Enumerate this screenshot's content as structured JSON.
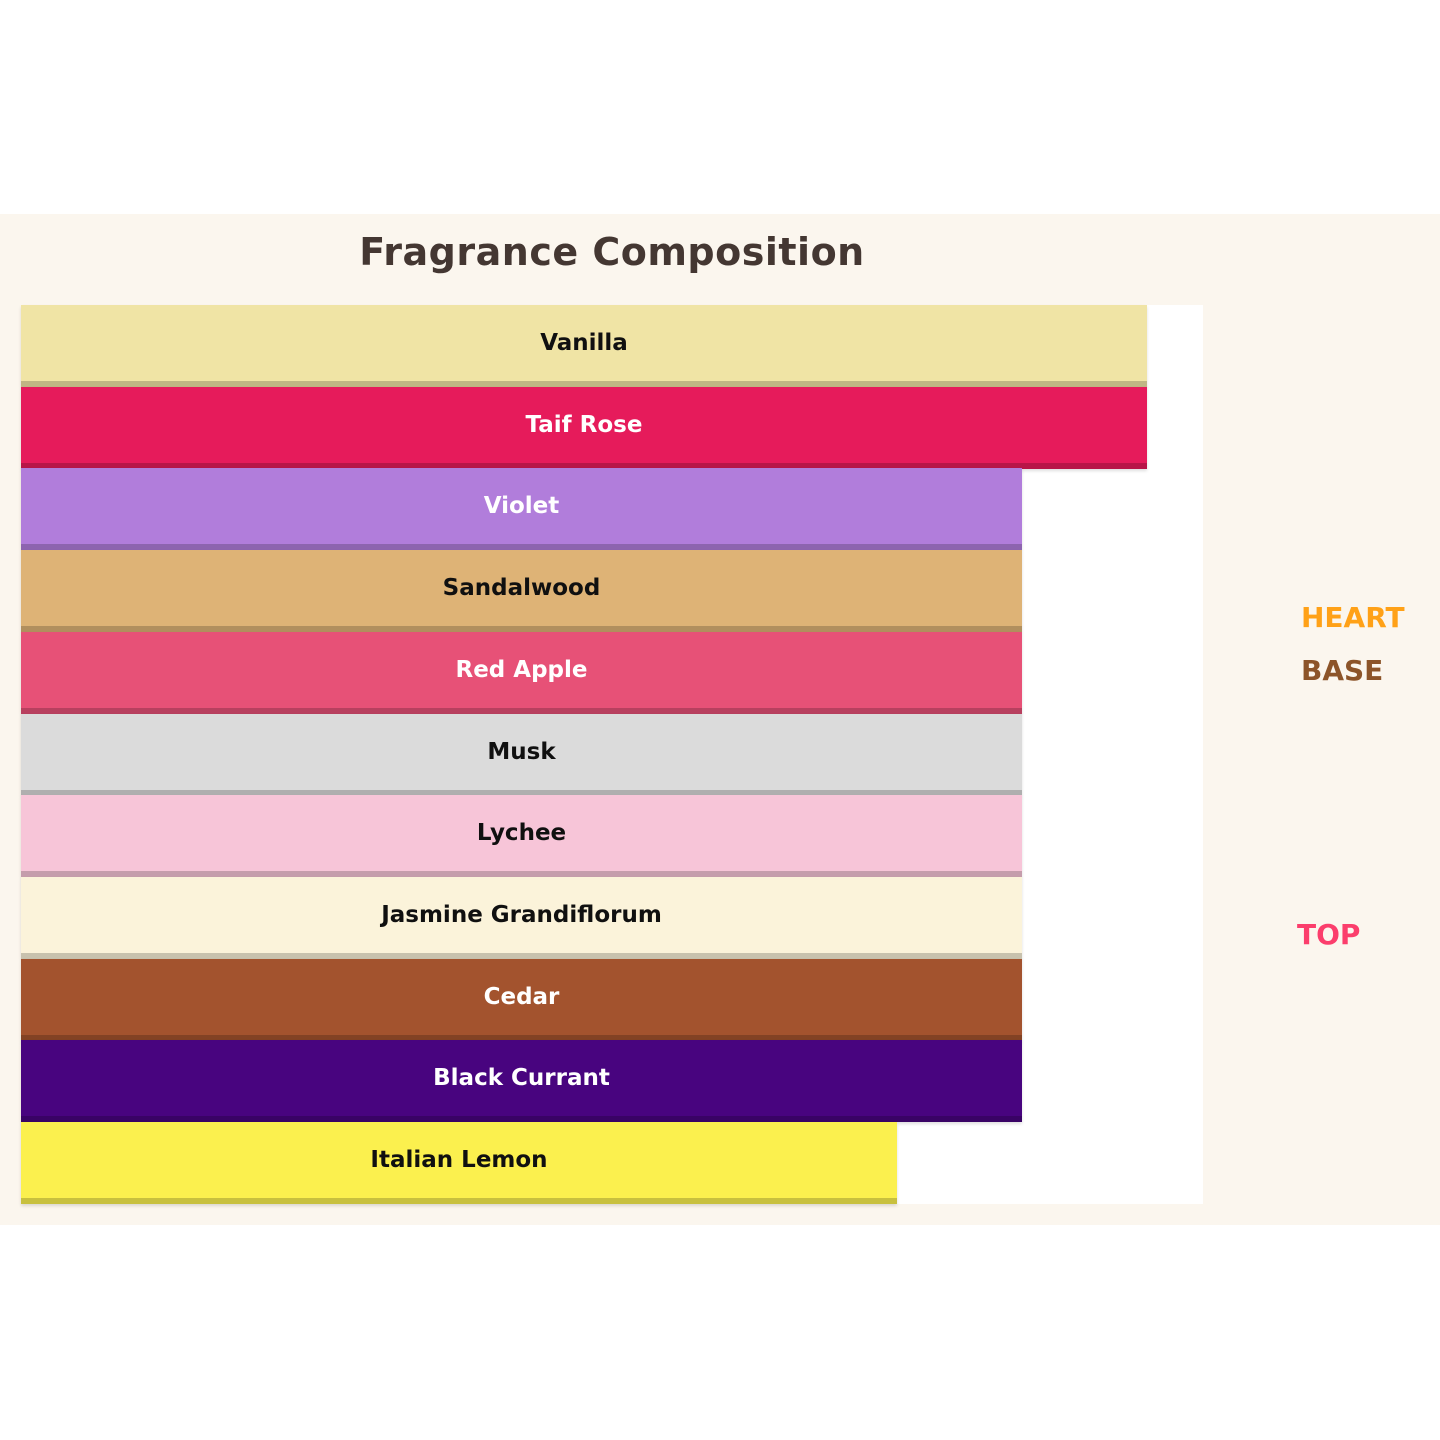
{
  "title": "Fragrance Composition",
  "colors": {
    "page_background": "#FFFFFF",
    "band_background": "#FBF6EE",
    "panel_background": "#FFFFFF",
    "title_text": "#443732"
  },
  "chart_data": {
    "type": "bar",
    "orientation": "horizontal",
    "title": "Fragrance Composition",
    "grid": false,
    "axes_visible": false,
    "bars": [
      {
        "label": "Vanilla",
        "length_frac": 0.953,
        "color": "#F0E4A5",
        "text_color": "#101010"
      },
      {
        "label": "Taif Rose",
        "length_frac": 0.953,
        "color": "#E61B5B",
        "text_color": "#FFFFFF"
      },
      {
        "label": "Violet",
        "length_frac": 0.847,
        "color": "#B17DDB",
        "text_color": "#FFFFFF"
      },
      {
        "label": "Sandalwood",
        "length_frac": 0.847,
        "color": "#DEB376",
        "text_color": "#101010"
      },
      {
        "label": "Red Apple",
        "length_frac": 0.847,
        "color": "#E75177",
        "text_color": "#FFFFFF"
      },
      {
        "label": "Musk",
        "length_frac": 0.847,
        "color": "#DBDBDB",
        "text_color": "#101010"
      },
      {
        "label": "Lychee",
        "length_frac": 0.847,
        "color": "#F7C5D8",
        "text_color": "#101010"
      },
      {
        "label": "Jasmine Grandiflorum",
        "length_frac": 0.847,
        "color": "#FBF3DA",
        "text_color": "#101010"
      },
      {
        "label": "Cedar",
        "length_frac": 0.847,
        "color": "#A3532E",
        "text_color": "#FFFFFF"
      },
      {
        "label": "Black Currant",
        "length_frac": 0.847,
        "color": "#48047F",
        "text_color": "#FFFFFF"
      },
      {
        "label": "Italian Lemon",
        "length_frac": 0.741,
        "color": "#FBF04E",
        "text_color": "#101010"
      }
    ],
    "side_labels": [
      {
        "id": "heart",
        "text": "HEART",
        "color": "#FFA117"
      },
      {
        "id": "base",
        "text": "BASE",
        "color": "#8C5429"
      },
      {
        "id": "top",
        "text": "TOP",
        "color": "#FB3E6C"
      }
    ],
    "legend_position": "right"
  }
}
